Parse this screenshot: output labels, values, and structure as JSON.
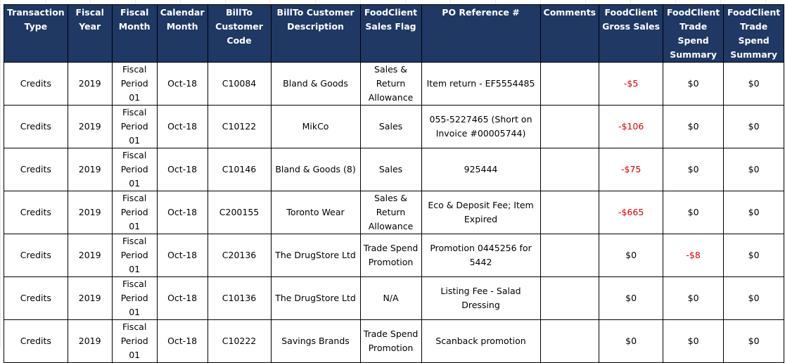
{
  "colors": {
    "header_bg": "#1f3864",
    "header_text": "#ffffff",
    "negative": "#e00000"
  },
  "columns": [
    "Transaction Type",
    "Fiscal Year",
    "Fiscal Month",
    "Calendar Month",
    "BillTo Customer Code",
    "BillTo Customer Description",
    "FoodClient Sales Flag",
    "PO Reference #",
    "Comments",
    "FoodClient Gross Sales",
    "FoodClient Trade Spend Summary",
    "FoodClient Trade Spend Summary"
  ],
  "rows": [
    {
      "type": "Credits",
      "year": "2019",
      "fmonth": "Fiscal Period 01",
      "cmonth": "Oct-18",
      "code": "C10084",
      "desc": "Bland & Goods",
      "flag": "Sales & Return Allowance",
      "po": "Item return - EF5554485",
      "comments": "",
      "gross": "-$5",
      "trade1": "$0",
      "trade2": "$0"
    },
    {
      "type": "Credits",
      "year": "2019",
      "fmonth": "Fiscal Period 01",
      "cmonth": "Oct-18",
      "code": "C10122",
      "desc": "MikCo",
      "flag": "Sales",
      "po": "055-5227465 (Short on Invoice #00005744)",
      "comments": "",
      "gross": "-$106",
      "trade1": "$0",
      "trade2": "$0"
    },
    {
      "type": "Credits",
      "year": "2019",
      "fmonth": "Fiscal Period 01",
      "cmonth": "Oct-18",
      "code": "C10146",
      "desc": "Bland & Goods (8)",
      "flag": "Sales",
      "po": "925444",
      "comments": "",
      "gross": "-$75",
      "trade1": "$0",
      "trade2": "$0"
    },
    {
      "type": "Credits",
      "year": "2019",
      "fmonth": "Fiscal Period 01",
      "cmonth": "Oct-18",
      "code": "C200155",
      "desc": "Toronto Wear",
      "flag": "Sales & Return Allowance",
      "po": "Eco & Deposit Fee; Item Expired",
      "comments": "",
      "gross": "-$665",
      "trade1": "$0",
      "trade2": "$0"
    },
    {
      "type": "Credits",
      "year": "2019",
      "fmonth": "Fiscal Period 01",
      "cmonth": "Oct-18",
      "code": "C20136",
      "desc": "The DrugStore Ltd",
      "flag": "Trade Spend Promotion",
      "po": "Promotion 0445256 for 5442",
      "comments": "",
      "gross": "$0",
      "trade1": "-$8",
      "trade2": "$0"
    },
    {
      "type": "Credits",
      "year": "2019",
      "fmonth": "Fiscal Period 01",
      "cmonth": "Oct-18",
      "code": "C10136",
      "desc": "The DrugStore Ltd",
      "flag": "N/A",
      "po": "Listing Fee - Salad Dressing",
      "comments": "",
      "gross": "$0",
      "trade1": "$0",
      "trade2": "$0"
    },
    {
      "type": "Credits",
      "year": "2019",
      "fmonth": "Fiscal Period 01",
      "cmonth": "Oct-18",
      "code": "C10222",
      "desc": "Savings Brands",
      "flag": "Trade Spend Promotion",
      "po": "Scanback promotion",
      "comments": "",
      "gross": "$0",
      "trade1": "$0",
      "trade2": "$0"
    }
  ]
}
